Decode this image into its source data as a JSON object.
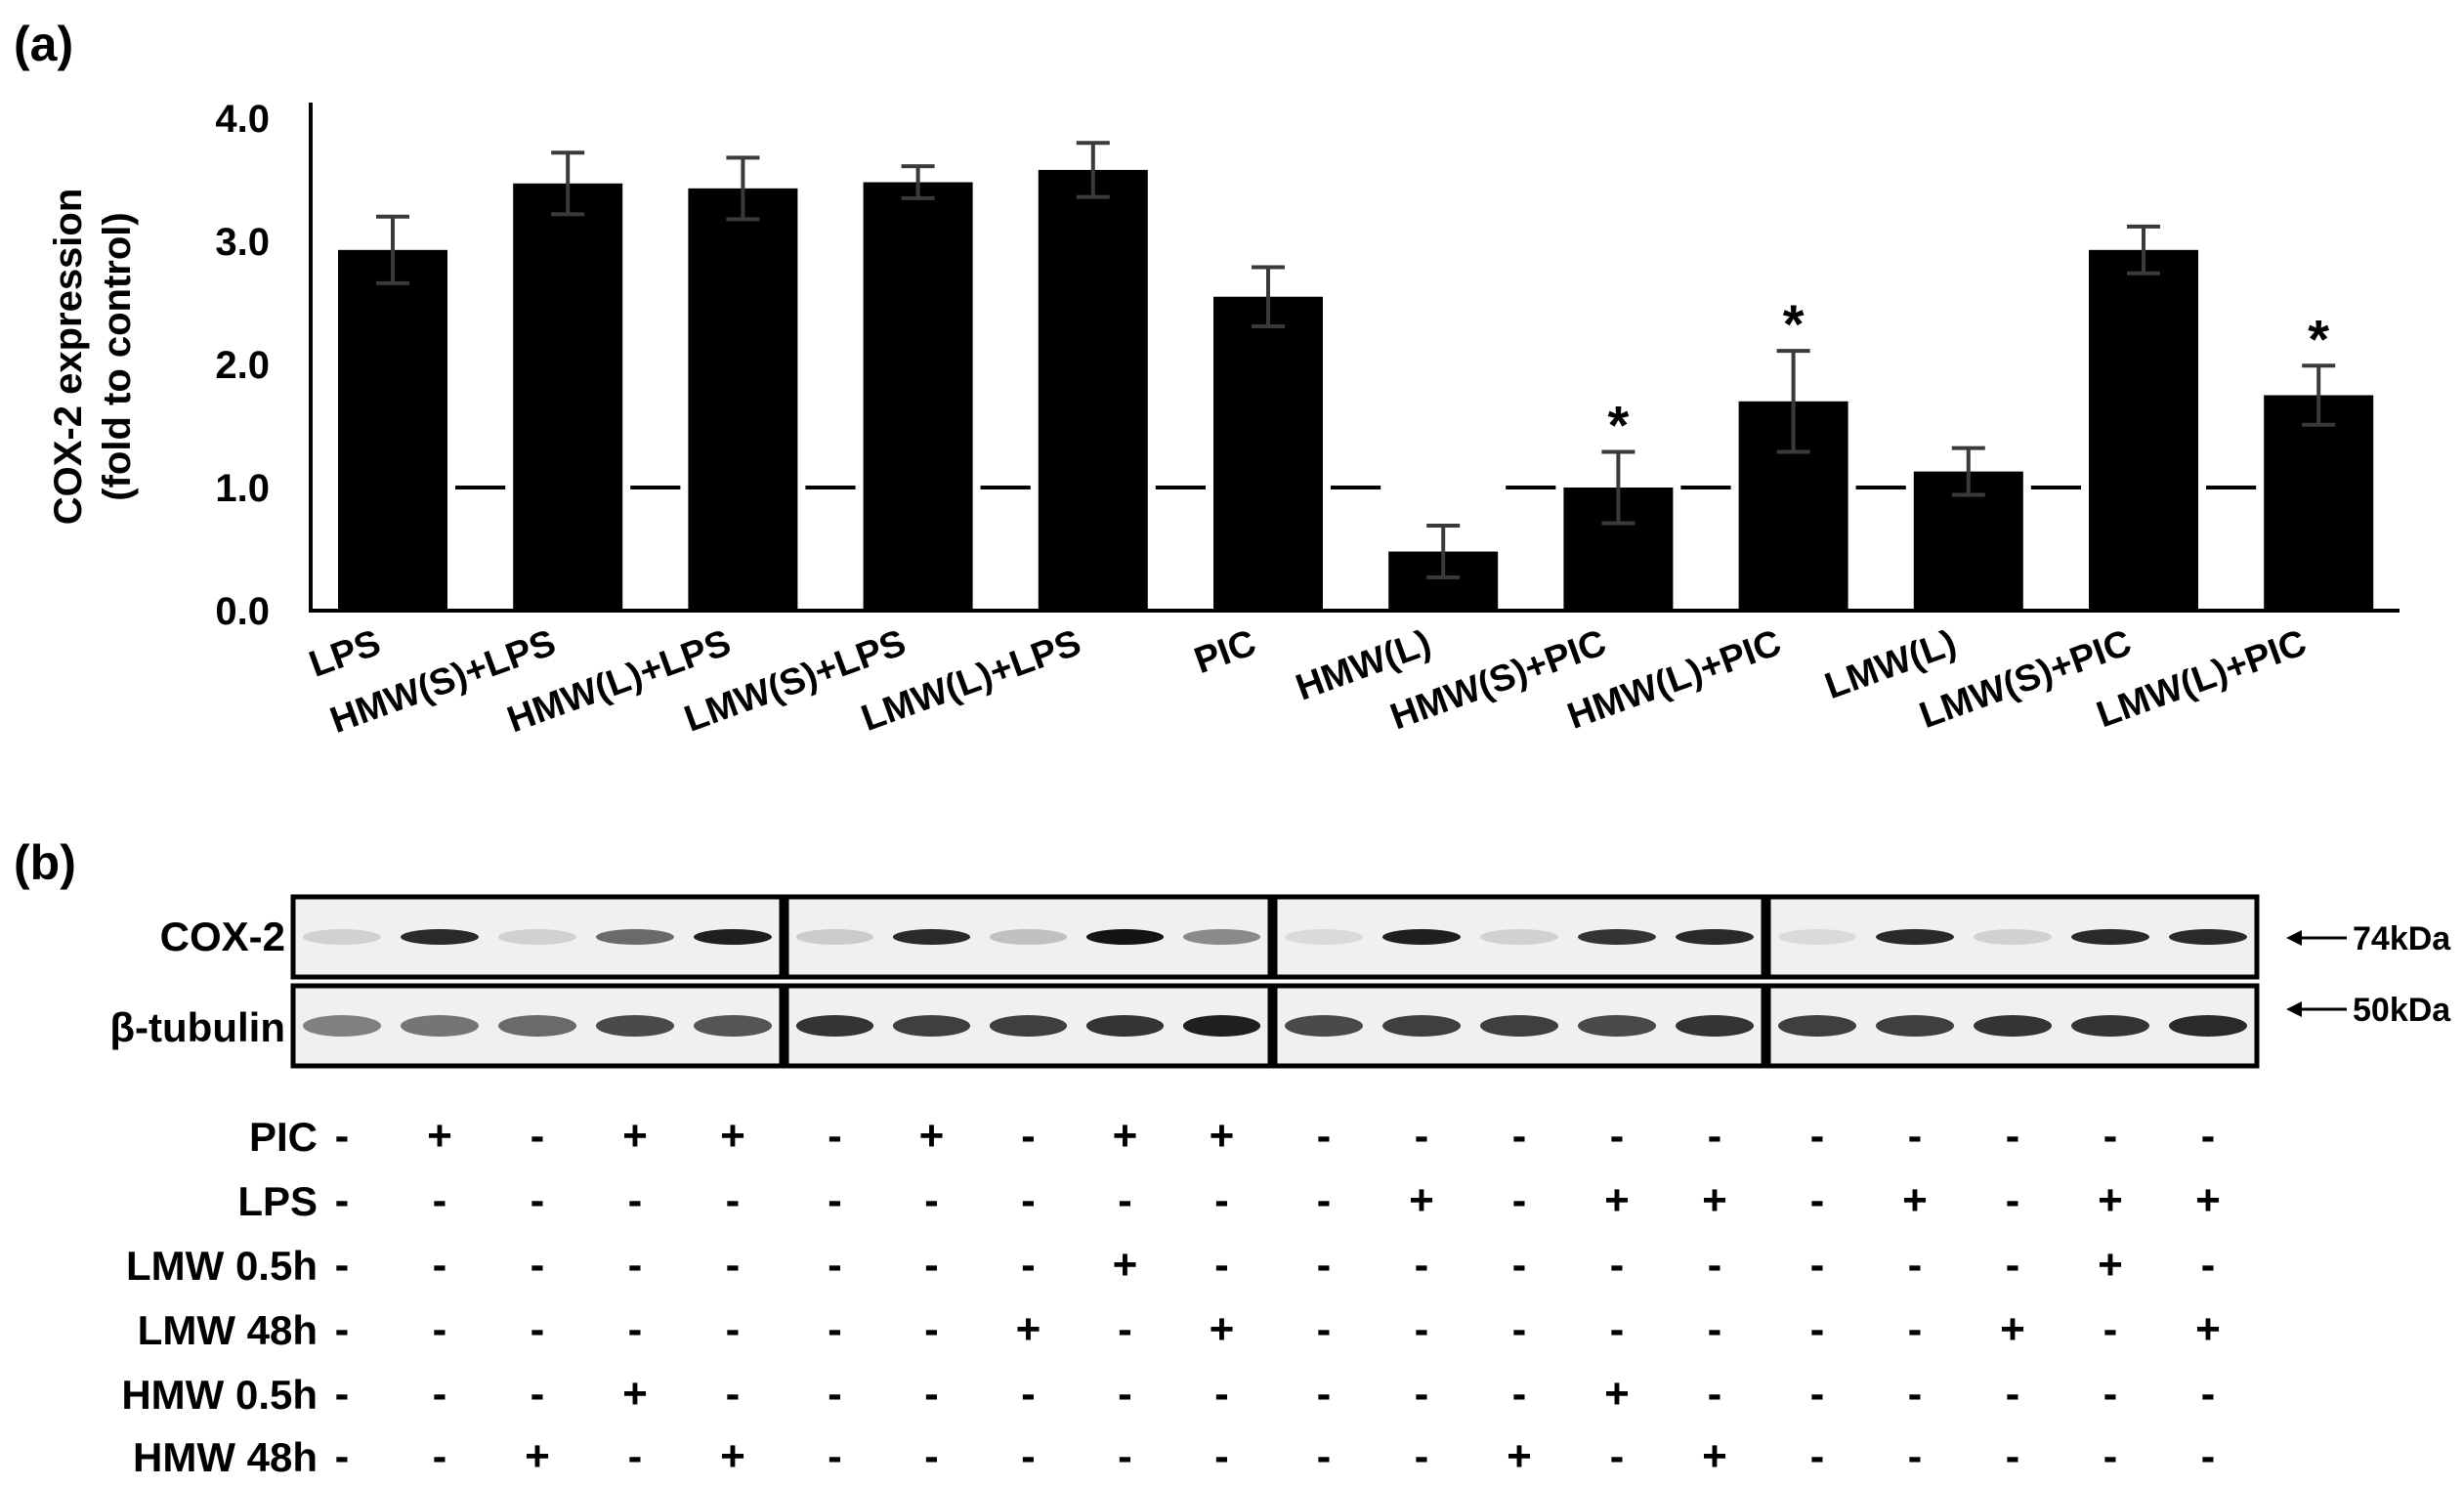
{
  "panel_a_label": "(a)",
  "panel_b_label": "(b)",
  "chart_data": {
    "type": "bar",
    "title": "",
    "xlabel": "",
    "ylabel": "COX-2 expression",
    "ylabel_line2": "(fold to control)",
    "ylim": [
      0,
      4.0
    ],
    "yticks": [
      "0.0",
      "1.0",
      "2.0",
      "3.0",
      "4.0"
    ],
    "ytick_values": [
      0,
      1,
      2,
      3,
      4
    ],
    "grid": false,
    "bar_color": "#000000",
    "categories": [
      "LPS",
      "HMW(S)+LPS",
      "HMW(L)+LPS",
      "LMW(S)+LPS",
      "LMW(L)+LPS",
      "PIC",
      "HMW(L)",
      "HMW(S)+PIC",
      "HMW(L)+PIC",
      "LMW(L)",
      "LMW(S)+PIC",
      "LMW(L)+PIC"
    ],
    "values": [
      2.93,
      3.47,
      3.43,
      3.48,
      3.58,
      2.55,
      0.48,
      1.0,
      1.7,
      1.13,
      2.93,
      1.75
    ],
    "errors": [
      0.27,
      0.25,
      0.25,
      0.13,
      0.22,
      0.24,
      0.21,
      0.29,
      0.41,
      0.19,
      0.19,
      0.24
    ],
    "significance": [
      "",
      "",
      "",
      "",
      "",
      "",
      "",
      "*",
      "*",
      "",
      "",
      "*"
    ],
    "reference_line": 1.0
  },
  "blot": {
    "rows": [
      "COX-2",
      "β-tubulin"
    ],
    "markers": [
      "74kDa",
      "50kDa"
    ],
    "cox2_intensity": [
      [
        0.12,
        0.9,
        0.12,
        0.6,
        0.95
      ],
      [
        0.15,
        0.9,
        0.2,
        1.0,
        0.45
      ],
      [
        0.08,
        0.95,
        0.12,
        0.85,
        0.9
      ],
      [
        0.08,
        0.9,
        0.12,
        0.9,
        0.9
      ]
    ],
    "tubulin_intensity": [
      [
        0.5,
        0.55,
        0.6,
        0.75,
        0.7
      ],
      [
        0.85,
        0.8,
        0.8,
        0.85,
        0.95
      ],
      [
        0.75,
        0.8,
        0.8,
        0.75,
        0.85
      ],
      [
        0.8,
        0.8,
        0.85,
        0.85,
        0.9
      ]
    ]
  },
  "conditions": {
    "labels": [
      "PIC",
      "LPS",
      "LMW 0.5h",
      "LMW 48h",
      "HMW 0.5h",
      "HMW 48h"
    ],
    "groups": [
      [
        [
          "-",
          "+",
          "-",
          "+",
          "+"
        ],
        [
          "-",
          "-",
          "-",
          "-",
          "-"
        ],
        [
          "-",
          "-",
          "-",
          "-",
          "-"
        ],
        [
          "-",
          "-",
          "-",
          "-",
          "-"
        ],
        [
          "-",
          "-",
          "-",
          "+",
          "-"
        ],
        [
          "-",
          "-",
          "+",
          "-",
          "+"
        ]
      ],
      [
        [
          "-",
          "+",
          "-",
          "+",
          "+"
        ],
        [
          "-",
          "-",
          "-",
          "-",
          "-"
        ],
        [
          "-",
          "-",
          "-",
          "+",
          "-"
        ],
        [
          "-",
          "-",
          "+",
          "-",
          "+"
        ],
        [
          "-",
          "-",
          "-",
          "-",
          "-"
        ],
        [
          "-",
          "-",
          "-",
          "-",
          "-"
        ]
      ],
      [
        [
          "-",
          "-",
          "-",
          "-",
          "-"
        ],
        [
          "-",
          "+",
          "-",
          "+",
          "+"
        ],
        [
          "-",
          "-",
          "-",
          "-",
          "-"
        ],
        [
          "-",
          "-",
          "-",
          "-",
          "-"
        ],
        [
          "-",
          "-",
          "-",
          "+",
          "-"
        ],
        [
          "-",
          "-",
          "+",
          "-",
          "+"
        ]
      ],
      [
        [
          "-",
          "-",
          "-",
          "-",
          "-"
        ],
        [
          "-",
          "+",
          "-",
          "+",
          "+"
        ],
        [
          "-",
          "-",
          "-",
          "+",
          "-"
        ],
        [
          "-",
          "-",
          "+",
          "-",
          "+"
        ],
        [
          "-",
          "-",
          "-",
          "-",
          "-"
        ],
        [
          "-",
          "-",
          "-",
          "-",
          "-"
        ]
      ]
    ]
  }
}
